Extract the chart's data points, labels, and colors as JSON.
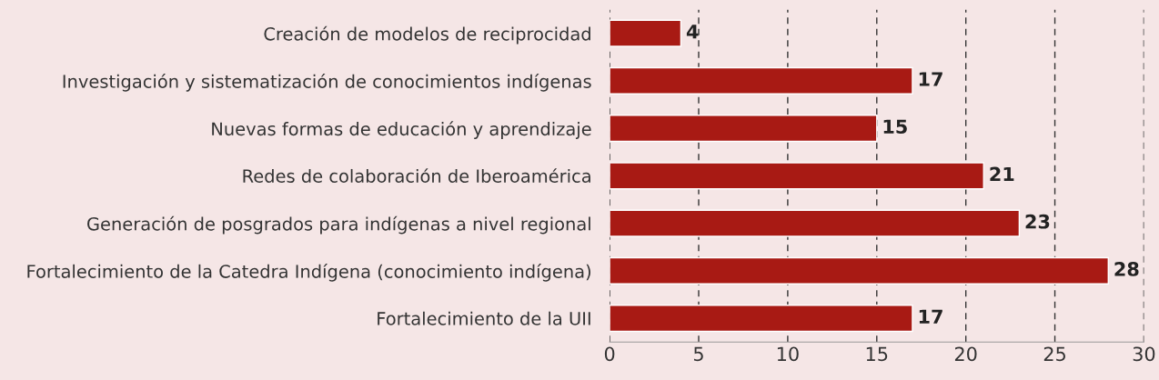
{
  "chart_data": {
    "type": "bar",
    "orientation": "horizontal",
    "categories": [
      "Creación de modelos de reciprocidad",
      "Investigación y sistematización de conocimientos indígenas",
      "Nuevas formas de educación y aprendizaje",
      "Redes de colaboración de Iberoamérica",
      "Generación de posgrados para indígenas a nivel regional",
      "Fortalecimiento de la Catedra Indígena (conocimiento indígena)",
      "Fortalecimiento de la UII"
    ],
    "values": [
      4,
      17,
      15,
      21,
      23,
      28,
      17
    ],
    "color": "#a81a14",
    "xlim": [
      0,
      30
    ],
    "xticks": [
      0,
      5,
      10,
      15,
      20,
      25,
      30
    ],
    "grid": "x",
    "data_labels": true,
    "legend": false
  }
}
